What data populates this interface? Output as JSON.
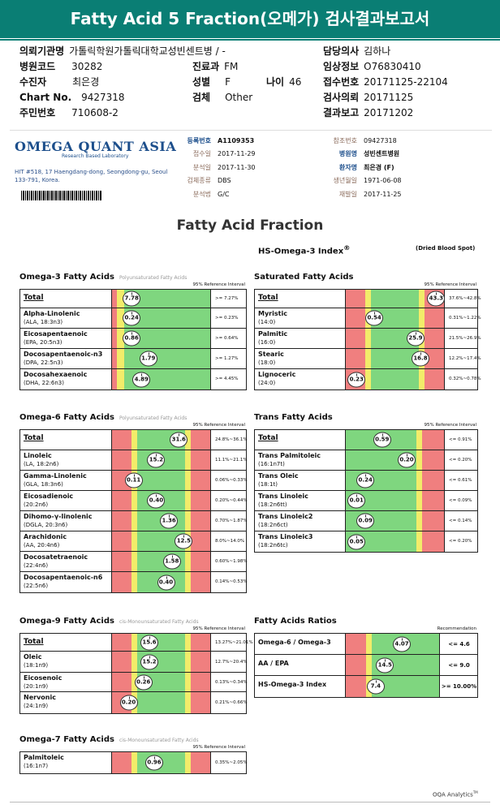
{
  "title": "Fatty Acid 5 Fraction(오메가) 검사결과보고서",
  "patient": {
    "institution_label": "의뢰기관명",
    "institution": "가톨릭학원가톨릭대학교성빈센트병 / -",
    "doctor_label": "담당의사",
    "doctor": "김하나",
    "hospital_code_label": "병원코드",
    "hospital_code": "30282",
    "dept_label": "진료과",
    "dept": "FM",
    "clinical_label": "임상정보",
    "clinical": "O76830410",
    "patient_label": "수진자",
    "patient_name": "최은경",
    "sex_label": "성별",
    "sex": "F",
    "age_label": "나이",
    "age": "46",
    "receipt_label": "접수번호",
    "receipt": "20171125-22104",
    "chart_label": "Chart No.",
    "chart": "9427318",
    "specimen_label": "검체",
    "specimen": "Other",
    "request_label": "검사의뢰",
    "request": "20171125",
    "id_label": "주민번호",
    "id": "710608-2",
    "report_label": "결과보고",
    "report": "20171202"
  },
  "lab": {
    "logo": "OMEGA QUANT ASIA",
    "logo_sub": "Research Based Laboratory",
    "address": "HIT #518, 17 Haengdang-dong, Seongdong-gu, Seoul 133-791, Korea.",
    "reg_no_label": "등록번호",
    "reg_no": "A1109353",
    "received_label": "접수일",
    "received": "2017-11-29",
    "analysis_date_label": "분석일",
    "analysis_date": "2017-11-30",
    "specimen_type_label": "검체종류",
    "specimen_type": "DBS",
    "method_label": "분석법",
    "method": "G/C",
    "ref_no_label": "참조번호",
    "ref_no": "09427318",
    "hospital_label": "병원명",
    "hospital": "성빈센트병원",
    "patient_label": "환자명",
    "patient": "최은경 (F)",
    "dob_label": "생년월일",
    "dob": "1971-06-08",
    "reissue_label": "재발일",
    "reissue": "2017-11-25"
  },
  "heading": "Fatty Acid Fraction",
  "hs_index": "HS-Omega-3 Index",
  "hs_sup": "®",
  "dbs": "(Dried Blood Spot)",
  "ref_label": "95% Reference Interval",
  "panels": {
    "omega3": {
      "title": "Omega-3 Fatty Acids",
      "subtitle": "Polyunsaturated Fatty Acids",
      "rows": [
        {
          "name": "Total",
          "sub": "",
          "value": "7.78",
          "pos": 0.2,
          "range": ">= 7.27%",
          "type": "single"
        },
        {
          "name": "Alpha-Linolenic",
          "sub": "(ALA, 18:3n3)",
          "value": "0.24",
          "pos": 0.2,
          "range": ">= 0.23%",
          "type": "single"
        },
        {
          "name": "Eicosapentaenoic",
          "sub": "(EPA, 20:5n3)",
          "value": "0.86",
          "pos": 0.2,
          "range": ">= 0.64%",
          "type": "single"
        },
        {
          "name": "Docosapentaenoic-n3",
          "sub": "(DPA, 22:5n3)",
          "value": "1.79",
          "pos": 0.37,
          "range": ">= 1.27%",
          "type": "single"
        },
        {
          "name": "Docosahexaenoic",
          "sub": "(DHA, 22:6n3)",
          "value": "4.89",
          "pos": 0.3,
          "range": ">= 4.45%",
          "type": "single"
        }
      ]
    },
    "saturated": {
      "title": "Saturated Fatty Acids",
      "subtitle": "",
      "rows": [
        {
          "name": "Total",
          "sub": "",
          "value": "43.3",
          "pos": 0.92,
          "range": "37.6%~42.8%",
          "type": "band"
        },
        {
          "name": "Myristic",
          "sub": "(14:0)",
          "value": "0.54",
          "pos": 0.29,
          "range": "0.31%~1.22%",
          "type": "band"
        },
        {
          "name": "Palmitic",
          "sub": "(16:0)",
          "value": "25.9",
          "pos": 0.71,
          "range": "21.5%~26.9%",
          "type": "band"
        },
        {
          "name": "Stearic",
          "sub": "(18:0)",
          "value": "16.8",
          "pos": 0.76,
          "range": "12.2%~17.4%",
          "type": "band"
        },
        {
          "name": "Lignoceric",
          "sub": "(24:0)",
          "value": "0.23",
          "pos": 0.11,
          "range": "0.32%~0.78%",
          "type": "band"
        }
      ]
    },
    "omega6": {
      "title": "Omega-6 Fatty Acids",
      "subtitle": "Polyunsaturated Fatty Acids",
      "rows": [
        {
          "name": "Total",
          "sub": "",
          "value": "31.6",
          "pos": 0.68,
          "range": "24.8%~36.1%",
          "type": "band"
        },
        {
          "name": "Linoleic",
          "sub": "(LA, 18:2n6)",
          "value": "15.2",
          "pos": 0.45,
          "range": "11.1%~21.1%",
          "type": "band"
        },
        {
          "name": "Gamma-Linolenic",
          "sub": "(GLA, 18:3n6)",
          "value": "0.11",
          "pos": 0.22,
          "range": "0.06%~0.33%",
          "type": "band"
        },
        {
          "name": "Eicosadienoic",
          "sub": "(20:2n6)",
          "value": "0.40",
          "pos": 0.45,
          "range": "0.20%~0.44%",
          "type": "band"
        },
        {
          "name": "Dihomo-γ-linolenic",
          "sub": "(DGLA, 20:3n6)",
          "value": "1.36",
          "pos": 0.58,
          "range": "0.70%~1.87%",
          "type": "band"
        },
        {
          "name": "Arachidonic",
          "sub": "(AA, 20:4n6)",
          "value": "12.5",
          "pos": 0.73,
          "range": "8.0%~14.0%",
          "type": "band"
        },
        {
          "name": "Docosatetraenoic",
          "sub": "(22:4n6)",
          "value": "1.58",
          "pos": 0.61,
          "range": "0.60%~1.98%",
          "type": "band"
        },
        {
          "name": "Docosapentaenoic-n6",
          "sub": "(22:5n6)",
          "value": "0.40",
          "pos": 0.55,
          "range": "0.14%~0.53%",
          "type": "band"
        }
      ]
    },
    "trans": {
      "title": "Trans Fatty Acids",
      "subtitle": "",
      "rows": [
        {
          "name": "Total",
          "sub": "",
          "value": "0.59",
          "pos": 0.37,
          "range": "<= 0.91%",
          "type": "trans"
        },
        {
          "name": "Trans Palmitoleic",
          "sub": "(16:1n7t)",
          "value": "0.20",
          "pos": 0.62,
          "range": "<= 0.20%",
          "type": "trans"
        },
        {
          "name": "Trans Oleic",
          "sub": "(18:1t)",
          "value": "0.24",
          "pos": 0.2,
          "range": "<= 0.61%",
          "type": "trans"
        },
        {
          "name": "Trans Linoleic",
          "sub": "(18:2n6tt)",
          "value": "0.01",
          "pos": 0.11,
          "range": "<= 0.09%",
          "type": "trans"
        },
        {
          "name": "Trans Linoleic2",
          "sub": "(18:2n6ct)",
          "value": "0.09",
          "pos": 0.2,
          "range": "<= 0.14%",
          "type": "trans"
        },
        {
          "name": "Trans Linoleic3",
          "sub": "(18:2n6tc)",
          "value": "0.05",
          "pos": 0.11,
          "range": "<= 0.20%",
          "type": "trans"
        }
      ]
    },
    "omega9": {
      "title": "Omega-9 Fatty Acids",
      "subtitle": "cis-Monounsaturated Fatty Acids",
      "rows": [
        {
          "name": "Total",
          "sub": "",
          "value": "15.6",
          "pos": 0.38,
          "range": "13.27%~21.01%",
          "type": "band"
        },
        {
          "name": "Oleic",
          "sub": "(18:1n9)",
          "value": "15.2",
          "pos": 0.38,
          "range": "12.7%~20.4%",
          "type": "band"
        },
        {
          "name": "Eicosenoic",
          "sub": "(20:1n9)",
          "value": "0.26",
          "pos": 0.32,
          "range": "0.13%~0.34%",
          "type": "band"
        },
        {
          "name": "Nervonic",
          "sub": "(24:1n9)",
          "value": "0.20",
          "pos": 0.17,
          "range": "0.21%~0.66%",
          "type": "band"
        }
      ]
    },
    "omega7": {
      "title": "Omega-7 Fatty Acids",
      "subtitle": "cis-Monounsaturated Fatty Acids",
      "rows": [
        {
          "name": "Palmitoleic",
          "sub": "(16:1n7)",
          "value": "0.96",
          "pos": 0.43,
          "range": "0.35%~2.05%",
          "type": "band"
        }
      ]
    },
    "ratios": {
      "title": "Fatty Acids Ratios",
      "subtitle": "",
      "ref": "Recommendation",
      "rows": [
        {
          "name": "Omega-6 / Omega-3",
          "sub": "",
          "value": "4.07",
          "pos": 0.6,
          "range": "<= 4.6",
          "type": "ratio"
        },
        {
          "name": "AA / EPA",
          "sub": "",
          "value": "14.5",
          "pos": 0.42,
          "range": "<= 9.0",
          "type": "ratio"
        },
        {
          "name": "HS-Omega-3 Index",
          "sub": "",
          "value": "7.4",
          "pos": 0.32,
          "range": ">= 10.00%",
          "type": "ratio"
        }
      ]
    }
  },
  "colors": {
    "green": "#7fd67f",
    "red": "#f07f7f",
    "yellow": "#f2ec6a",
    "teal": "#0a7e74"
  },
  "footer": "OQA Analytics",
  "footer_tm": "TM"
}
